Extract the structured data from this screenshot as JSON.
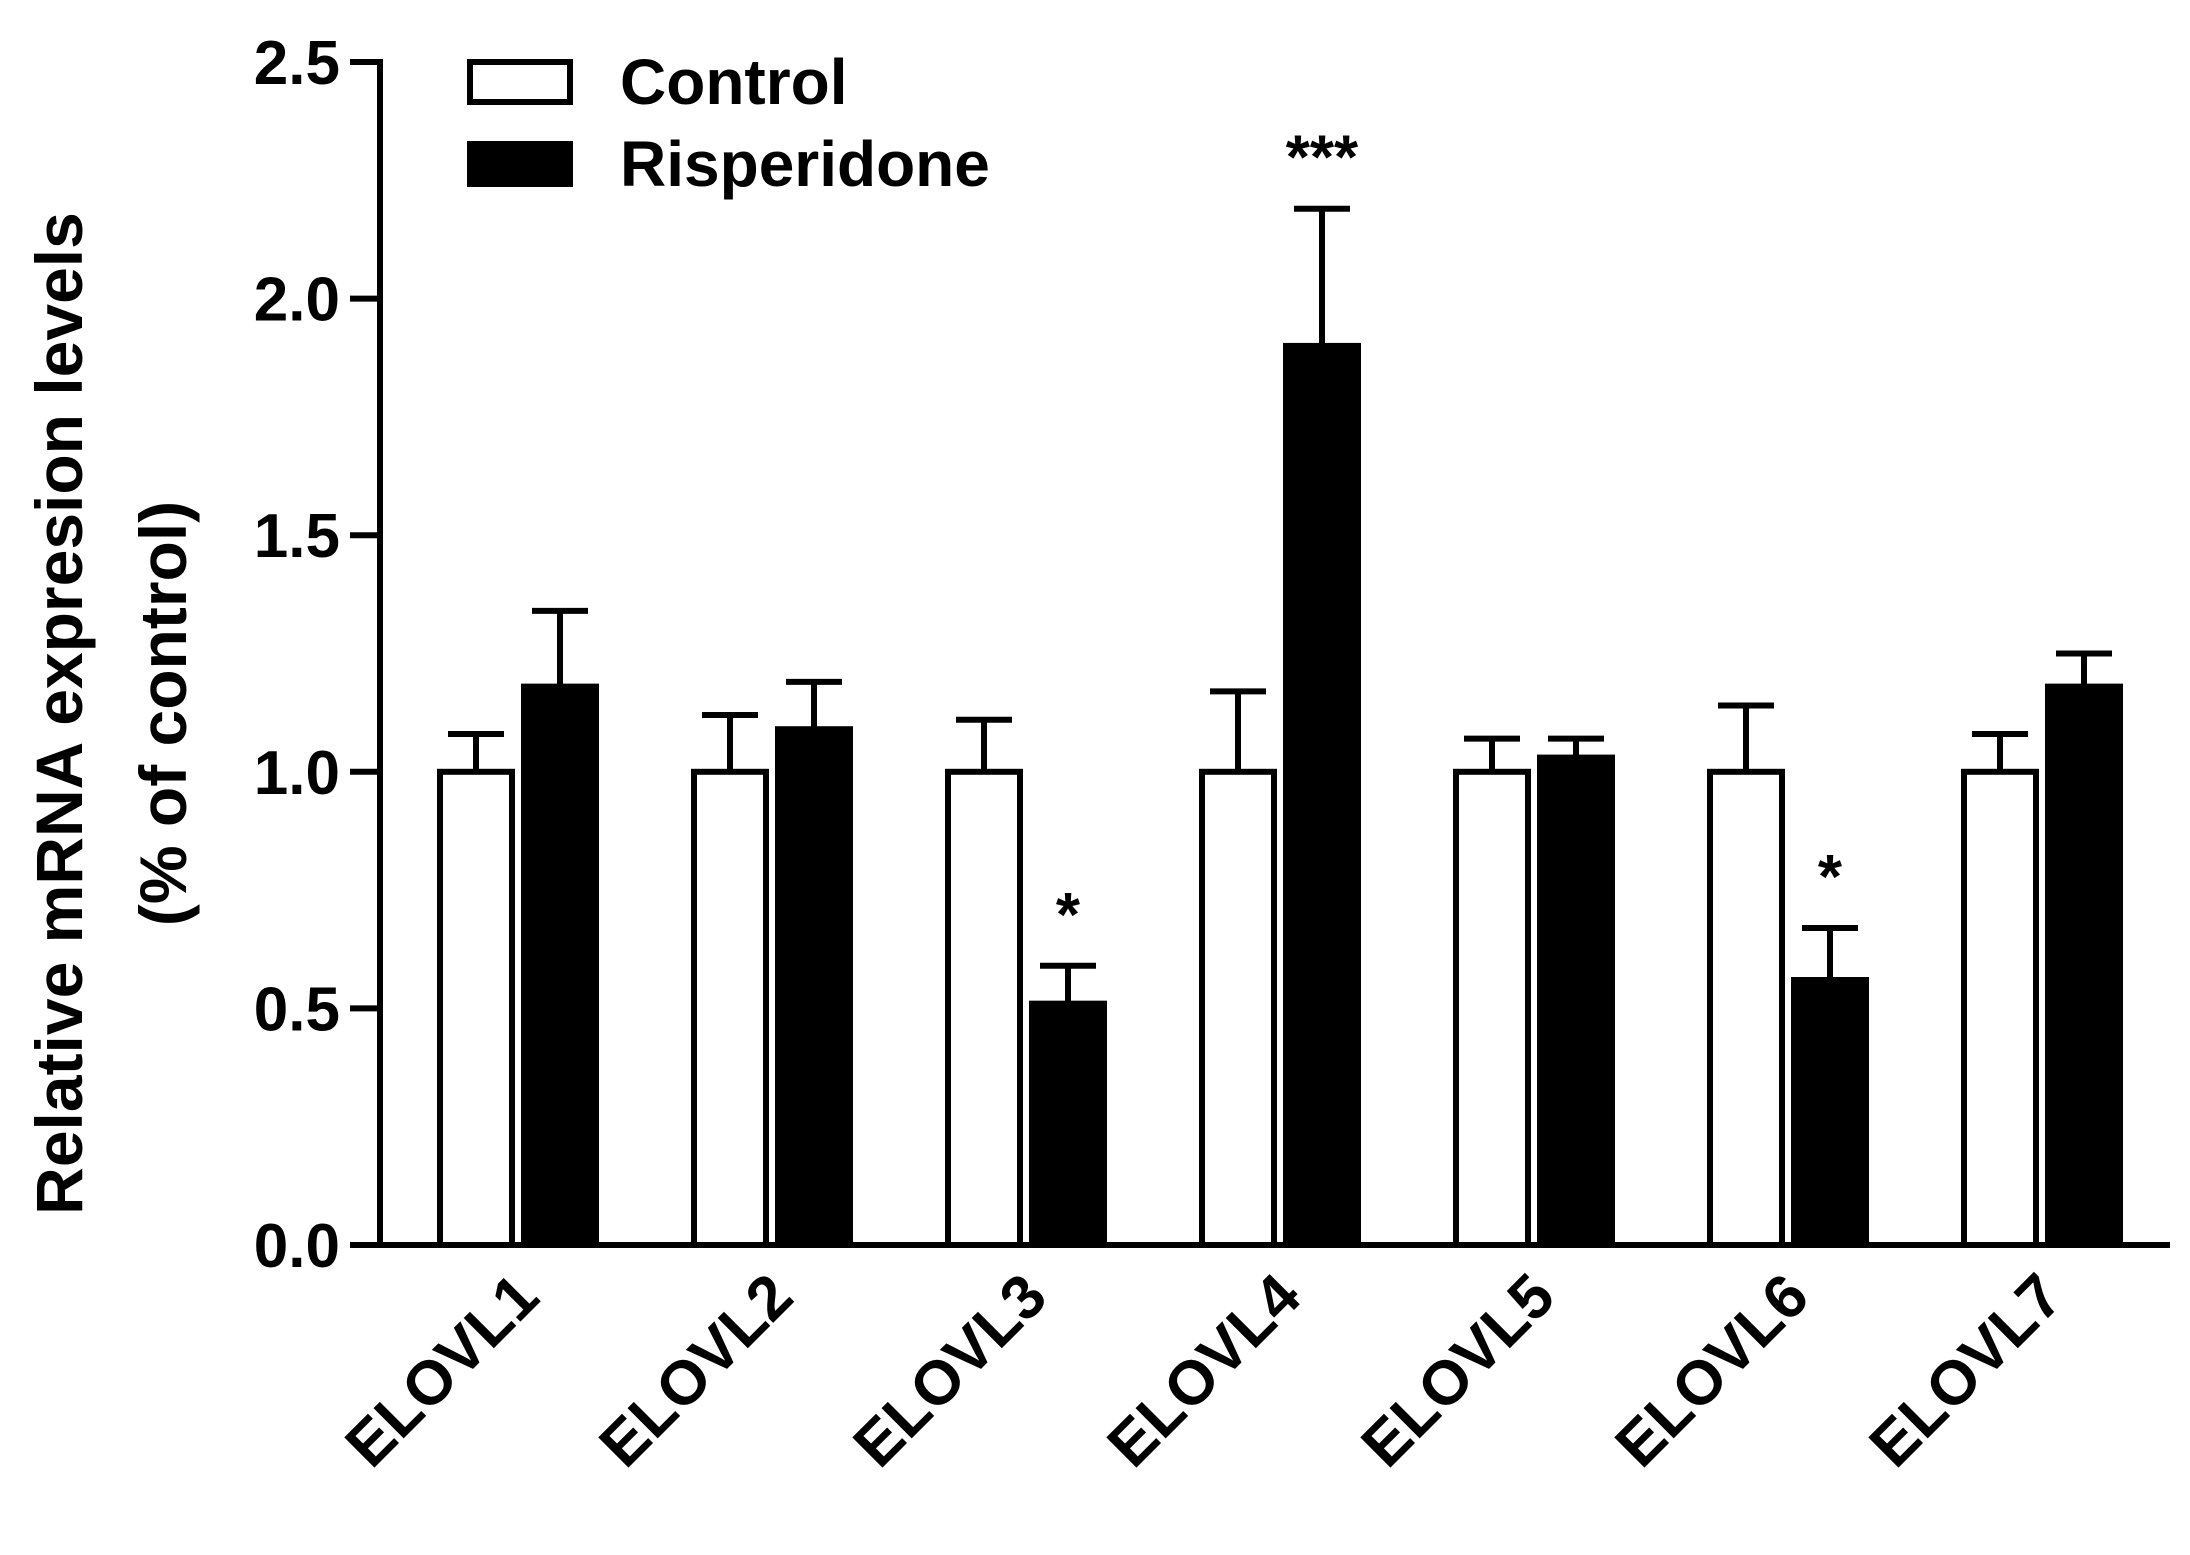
{
  "chart_data": {
    "type": "bar",
    "title": "",
    "xlabel": "",
    "ylabel_lines": [
      "Relative mRNA expresion levels",
      "(% of control)"
    ],
    "ylim": [
      0,
      2.5
    ],
    "yticks": [
      "0.0",
      "0.5",
      "1.0",
      "1.5",
      "2.0",
      "2.5"
    ],
    "ytick_values": [
      0,
      0.5,
      1.0,
      1.5,
      2.0,
      2.5
    ],
    "categories": [
      "ELOVL1",
      "ELOVL2",
      "ELOVL3",
      "ELOVL4",
      "ELOVL5",
      "ELOVL6",
      "ELOVL7"
    ],
    "series": [
      {
        "name": "Control",
        "fill": "#ffffff",
        "values": [
          1.0,
          1.0,
          1.0,
          1.0,
          1.0,
          1.0,
          1.0
        ],
        "errors": [
          0.08,
          0.12,
          0.11,
          0.17,
          0.07,
          0.14,
          0.08
        ],
        "significance": [
          "",
          "",
          "",
          "",
          "",
          "",
          ""
        ]
      },
      {
        "name": "Risperidone",
        "fill": "#000000",
        "values": [
          1.18,
          1.09,
          0.51,
          1.9,
          1.03,
          0.56,
          1.18
        ],
        "errors": [
          0.16,
          0.1,
          0.08,
          0.29,
          0.04,
          0.11,
          0.07
        ],
        "significance": [
          "",
          "",
          "*",
          "***",
          "",
          "*",
          ""
        ]
      }
    ],
    "legend_position": "top-left",
    "grid": false
  }
}
